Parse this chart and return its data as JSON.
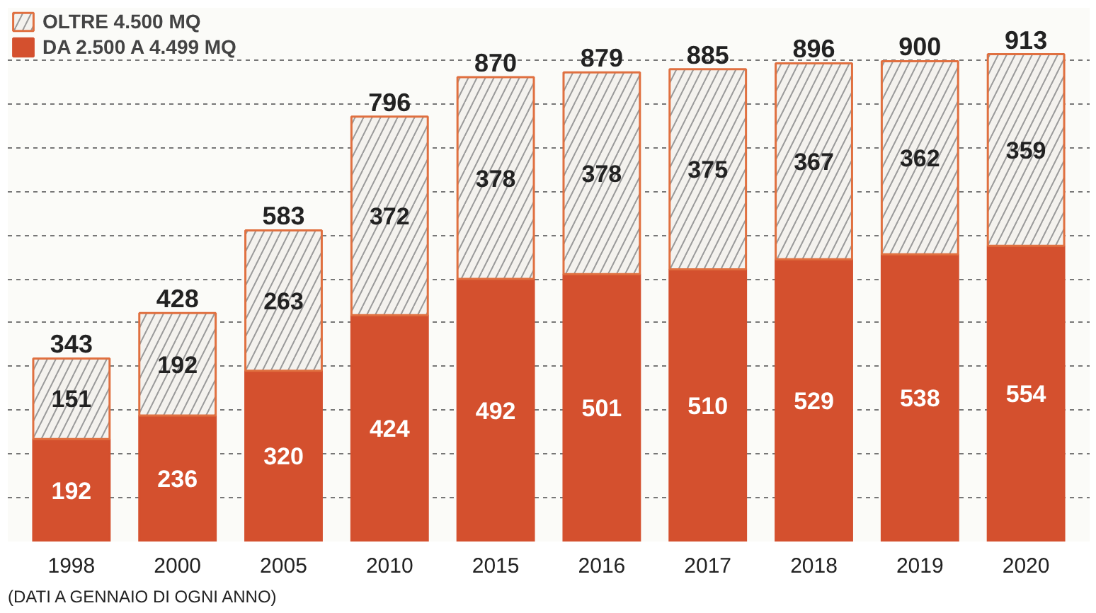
{
  "chart_data": {
    "type": "bar",
    "stacked": true,
    "categories": [
      "1998",
      "2000",
      "2005",
      "2010",
      "2015",
      "2016",
      "2017",
      "2018",
      "2019",
      "2020"
    ],
    "series": [
      {
        "name": "DA 2.500 A 4.499 MQ",
        "color": "#d4502e",
        "values": [
          192,
          236,
          320,
          424,
          492,
          501,
          510,
          529,
          538,
          554
        ]
      },
      {
        "name": "OLTRE 4.500 MQ",
        "color": "#f4f2ee",
        "values": [
          151,
          192,
          263,
          372,
          378,
          378,
          375,
          367,
          362,
          359
        ]
      }
    ],
    "totals": [
      "343",
      "428",
      "583",
      "796",
      "870",
      "879",
      "885",
      "896",
      "900",
      "913"
    ],
    "data_labels": true,
    "ylim": [
      0,
      1000
    ],
    "yticks": [
      {
        "value": 0,
        "label": null
      },
      {
        "value": 82,
        "label": null
      },
      {
        "value": 164,
        "label": null
      },
      {
        "value": 246,
        "label": null
      },
      {
        "value": 328,
        "label": null
      },
      {
        "value": 410,
        "label": null
      },
      {
        "value": 492,
        "label": null
      },
      {
        "value": 574,
        "label": null
      },
      {
        "value": 656,
        "label": null
      },
      {
        "value": 738,
        "label": null
      },
      {
        "value": 820,
        "label": null
      },
      {
        "value": 902,
        "label": null
      }
    ],
    "tick_labels": "x",
    "grid": "y",
    "legend": "top left",
    "annotations": [
      "(DATI A GENNAIO DI OGNI ANNO)"
    ]
  }
}
